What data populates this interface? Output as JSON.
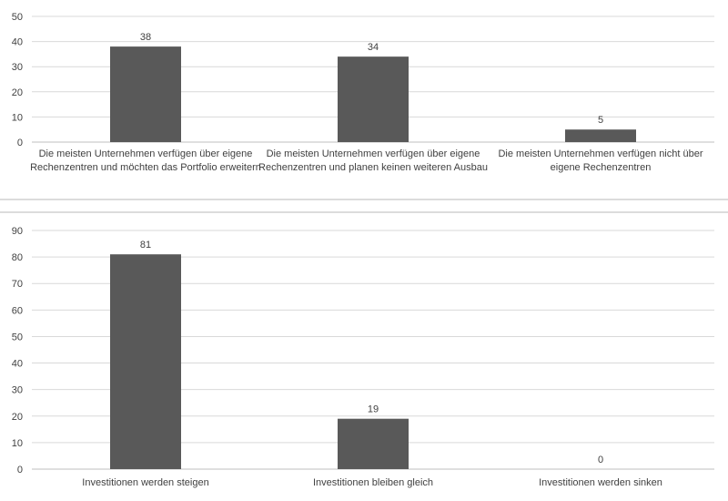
{
  "chart_data": [
    {
      "type": "bar",
      "title": "",
      "xlabel": "",
      "ylabel": "",
      "ylim": [
        0,
        50
      ],
      "yticks": [
        0,
        10,
        20,
        30,
        40,
        50
      ],
      "grid": true,
      "bar_color": "#595959",
      "categories": [
        [
          "Die meisten Unternehmen verfügen über eigene",
          "Rechenzentren und möchten das Portfolio erweitern"
        ],
        [
          "Die meisten Unternehmen verfügen über eigene",
          "Rechenzentren und planen keinen weiteren Ausbau"
        ],
        [
          "Die meisten Unternehmen verfügen nicht über",
          "eigene Rechenzentren"
        ]
      ],
      "values": [
        38,
        34,
        5
      ]
    },
    {
      "type": "bar",
      "title": "",
      "xlabel": "",
      "ylabel": "",
      "ylim": [
        0,
        90
      ],
      "yticks": [
        0,
        10,
        20,
        30,
        40,
        50,
        60,
        70,
        80,
        90
      ],
      "grid": true,
      "bar_color": "#595959",
      "categories": [
        [
          "Investitionen werden steigen"
        ],
        [
          "Investitionen bleiben gleich"
        ],
        [
          "Investitionen werden sinken"
        ]
      ],
      "values": [
        81,
        19,
        0
      ]
    }
  ]
}
